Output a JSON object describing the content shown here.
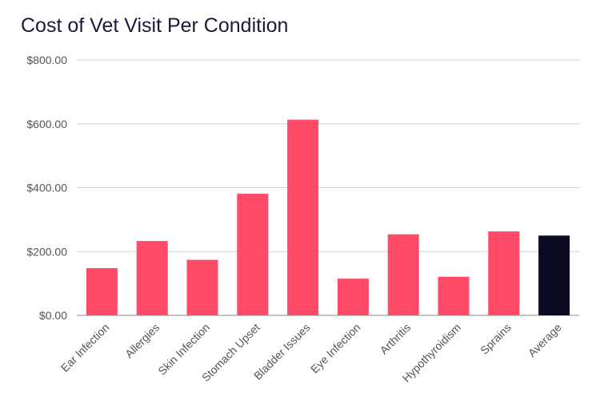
{
  "chart_data": {
    "type": "bar",
    "title": "Cost of Vet Visit Per Condition",
    "xlabel": "",
    "ylabel": "",
    "categories": [
      "Ear Infection",
      "Allergies",
      "Skin Infection",
      "Stomach Upset",
      "Bladder Issues",
      "Eye Infection",
      "Arthritis",
      "Hypothyroidism",
      "Sprains",
      "Average"
    ],
    "values": [
      148,
      233,
      174,
      381,
      613,
      115,
      254,
      121,
      263,
      250
    ],
    "colors": [
      "#ff4a68",
      "#ff4a68",
      "#ff4a68",
      "#ff4a68",
      "#ff4a68",
      "#ff4a68",
      "#ff4a68",
      "#ff4a68",
      "#ff4a68",
      "#0a0a23"
    ],
    "ylim": [
      0,
      800
    ],
    "yticks": [
      0,
      200,
      400,
      600,
      800
    ],
    "ytick_labels": [
      "$0.00",
      "$200.00",
      "$400.00",
      "$600.00",
      "$800.00"
    ],
    "grid": true,
    "legend": "none"
  }
}
